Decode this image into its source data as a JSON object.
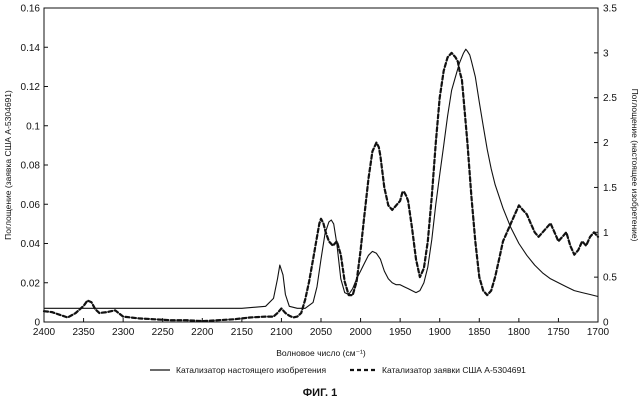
{
  "chart_data": {
    "type": "line",
    "title": "",
    "caption": "ФИГ. 1",
    "xlabel": "Волновое число (см⁻¹)",
    "ylabel_left": "Поглощение (заявка США А-5304691)",
    "ylabel_right": "Поглощение (настоящее изобретение)",
    "xlim": [
      2400,
      1700
    ],
    "ylim_left": [
      0,
      0.16
    ],
    "ylim_right": [
      0,
      3.5
    ],
    "x_ticks": [
      "2400",
      "2350",
      "2300",
      "2250",
      "2200",
      "2150",
      "2100",
      "2050",
      "2000",
      "1950",
      "1900",
      "1850",
      "1800",
      "1750",
      "1700"
    ],
    "y_left_ticks": [
      "0",
      "0.02",
      "0.04",
      "0.06",
      "0.08",
      "0.1",
      "0.12",
      "0.14",
      "0.16"
    ],
    "y_right_ticks": [
      "0",
      "0.5",
      "1",
      "1.5",
      "2",
      "2.5",
      "3",
      "3.5"
    ],
    "grid": false,
    "legend_position": "bottom",
    "series": [
      {
        "name": "Катализатор настоящего изобретения",
        "axis": "left",
        "style": "solid",
        "x": [
          2400,
          2350,
          2300,
          2250,
          2200,
          2150,
          2120,
          2110,
          2105,
          2102,
          2098,
          2095,
          2090,
          2080,
          2070,
          2060,
          2055,
          2050,
          2045,
          2040,
          2037,
          2034,
          2030,
          2025,
          2020,
          2015,
          2010,
          2005,
          2000,
          1995,
          1990,
          1985,
          1980,
          1975,
          1970,
          1965,
          1960,
          1955,
          1950,
          1945,
          1940,
          1935,
          1930,
          1925,
          1920,
          1915,
          1910,
          1905,
          1900,
          1895,
          1890,
          1885,
          1880,
          1875,
          1870,
          1867,
          1865,
          1862,
          1860,
          1855,
          1850,
          1845,
          1840,
          1835,
          1830,
          1820,
          1810,
          1800,
          1790,
          1780,
          1770,
          1760,
          1750,
          1740,
          1730,
          1720,
          1710,
          1700
        ],
        "y": [
          0.007,
          0.007,
          0.007,
          0.007,
          0.007,
          0.007,
          0.008,
          0.012,
          0.022,
          0.029,
          0.024,
          0.014,
          0.008,
          0.007,
          0.007,
          0.01,
          0.018,
          0.032,
          0.045,
          0.051,
          0.052,
          0.05,
          0.04,
          0.022,
          0.015,
          0.014,
          0.017,
          0.022,
          0.026,
          0.03,
          0.034,
          0.036,
          0.035,
          0.032,
          0.026,
          0.022,
          0.02,
          0.019,
          0.019,
          0.018,
          0.017,
          0.016,
          0.015,
          0.016,
          0.02,
          0.028,
          0.042,
          0.06,
          0.075,
          0.09,
          0.105,
          0.118,
          0.125,
          0.132,
          0.137,
          0.139,
          0.138,
          0.136,
          0.133,
          0.125,
          0.112,
          0.1,
          0.088,
          0.078,
          0.07,
          0.058,
          0.048,
          0.04,
          0.034,
          0.029,
          0.025,
          0.022,
          0.02,
          0.018,
          0.016,
          0.015,
          0.014,
          0.013
        ]
      },
      {
        "name": "Катализатор заявки США А-5304691",
        "axis": "right",
        "style": "dashed",
        "x": [
          2400,
          2390,
          2380,
          2370,
          2360,
          2350,
          2345,
          2340,
          2335,
          2330,
          2320,
          2310,
          2300,
          2280,
          2260,
          2240,
          2220,
          2200,
          2180,
          2160,
          2140,
          2120,
          2110,
          2105,
          2100,
          2095,
          2090,
          2085,
          2080,
          2075,
          2070,
          2065,
          2060,
          2055,
          2052,
          2050,
          2047,
          2044,
          2040,
          2035,
          2030,
          2025,
          2020,
          2015,
          2010,
          2005,
          2000,
          1995,
          1990,
          1985,
          1980,
          1977,
          1975,
          1970,
          1965,
          1960,
          1955,
          1950,
          1947,
          1945,
          1942,
          1940,
          1935,
          1930,
          1925,
          1920,
          1915,
          1910,
          1905,
          1900,
          1895,
          1890,
          1885,
          1880,
          1877,
          1875,
          1872,
          1870,
          1865,
          1860,
          1855,
          1850,
          1845,
          1840,
          1835,
          1830,
          1825,
          1820,
          1815,
          1810,
          1805,
          1800,
          1795,
          1790,
          1785,
          1780,
          1775,
          1770,
          1765,
          1760,
          1755,
          1750,
          1745,
          1740,
          1735,
          1730,
          1725,
          1720,
          1715,
          1710,
          1705,
          1700
        ],
        "y": [
          0.12,
          0.11,
          0.08,
          0.05,
          0.1,
          0.18,
          0.24,
          0.22,
          0.14,
          0.1,
          0.11,
          0.13,
          0.06,
          0.04,
          0.03,
          0.02,
          0.02,
          0.01,
          0.02,
          0.03,
          0.05,
          0.06,
          0.06,
          0.1,
          0.15,
          0.1,
          0.07,
          0.05,
          0.06,
          0.1,
          0.25,
          0.45,
          0.7,
          0.95,
          1.1,
          1.15,
          1.1,
          1.0,
          0.9,
          0.85,
          0.9,
          0.75,
          0.45,
          0.3,
          0.3,
          0.45,
          0.8,
          1.2,
          1.6,
          1.9,
          2.0,
          1.95,
          1.85,
          1.5,
          1.3,
          1.25,
          1.3,
          1.35,
          1.45,
          1.45,
          1.4,
          1.35,
          1.05,
          0.7,
          0.5,
          0.6,
          0.9,
          1.4,
          2.0,
          2.5,
          2.8,
          2.95,
          3.0,
          2.95,
          2.9,
          2.8,
          2.7,
          2.5,
          2.0,
          1.4,
          0.9,
          0.5,
          0.35,
          0.3,
          0.35,
          0.5,
          0.7,
          0.9,
          1.0,
          1.1,
          1.2,
          1.3,
          1.25,
          1.2,
          1.1,
          1.0,
          0.95,
          1.0,
          1.05,
          1.1,
          1.0,
          0.9,
          0.95,
          1.0,
          0.85,
          0.75,
          0.8,
          0.9,
          0.85,
          0.95,
          1.0,
          0.95
        ]
      }
    ]
  }
}
